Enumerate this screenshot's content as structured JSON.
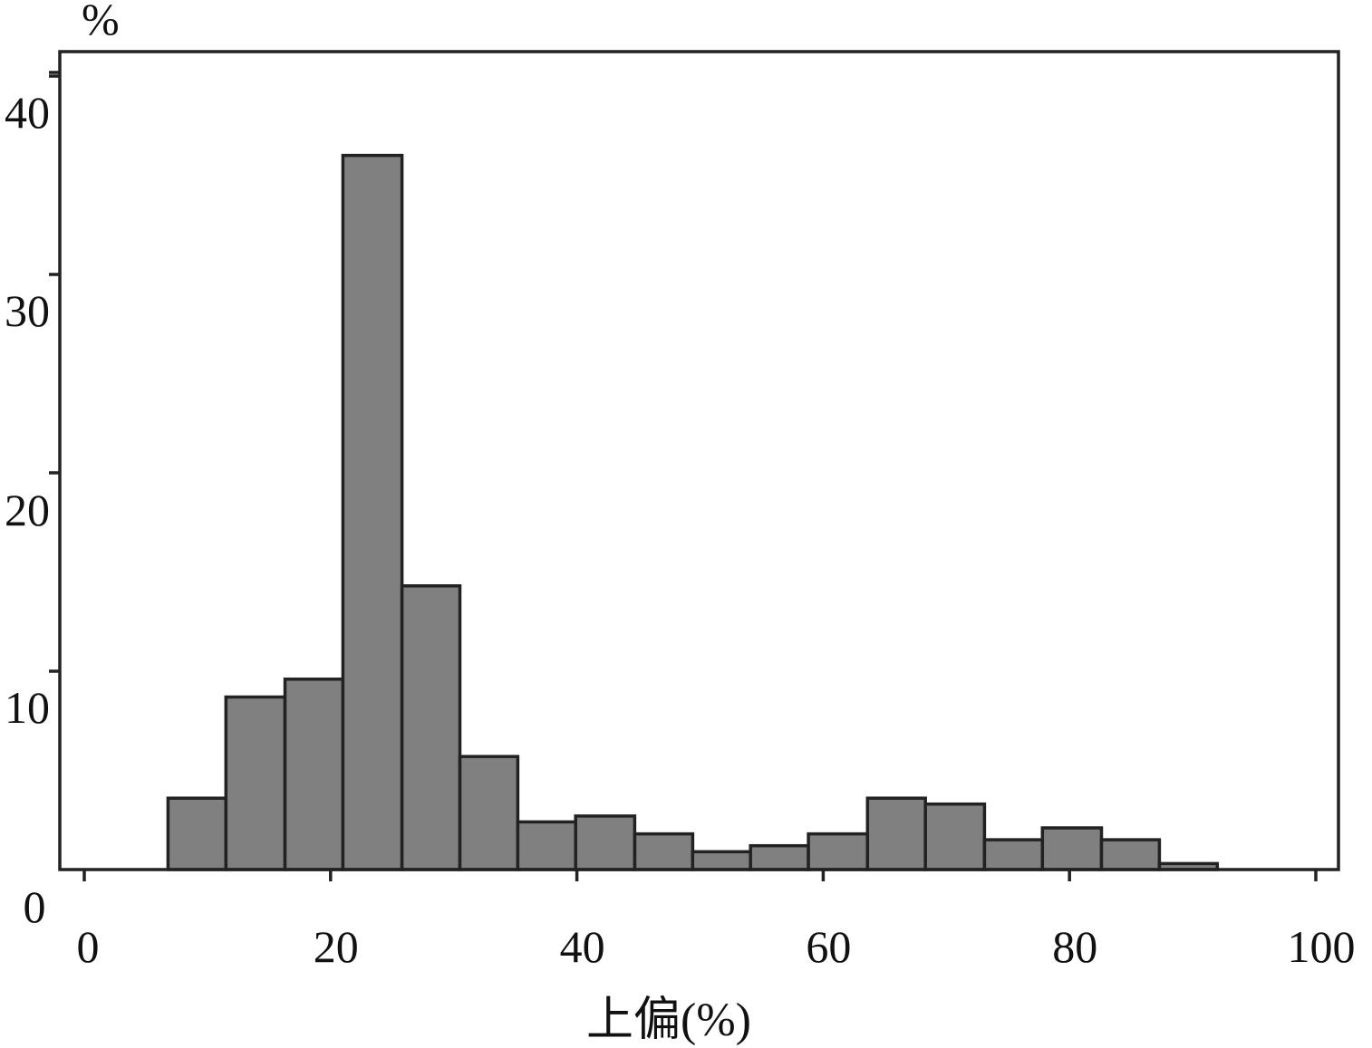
{
  "chart_data": {
    "type": "bar",
    "title": "",
    "xlabel": "上偏(%)",
    "ylabel": "%",
    "xlim": [
      0,
      100
    ],
    "ylim": [
      0,
      42
    ],
    "xticks": [
      0,
      20,
      40,
      60,
      80,
      100
    ],
    "yticks": [
      0,
      10,
      20,
      30,
      40
    ],
    "bins": [
      {
        "start": 6.8,
        "end": 11.5,
        "value": 3.6
      },
      {
        "start": 11.5,
        "end": 16.3,
        "value": 8.7
      },
      {
        "start": 16.3,
        "end": 21.0,
        "value": 9.6
      },
      {
        "start": 21.0,
        "end": 25.8,
        "value": 36.0
      },
      {
        "start": 25.8,
        "end": 30.5,
        "value": 14.3
      },
      {
        "start": 30.5,
        "end": 35.2,
        "value": 5.7
      },
      {
        "start": 35.2,
        "end": 39.9,
        "value": 2.4
      },
      {
        "start": 39.9,
        "end": 44.7,
        "value": 2.7
      },
      {
        "start": 44.7,
        "end": 49.4,
        "value": 1.8
      },
      {
        "start": 49.4,
        "end": 54.1,
        "value": 0.9
      },
      {
        "start": 54.1,
        "end": 58.8,
        "value": 1.2
      },
      {
        "start": 58.8,
        "end": 63.6,
        "value": 1.8
      },
      {
        "start": 63.6,
        "end": 68.3,
        "value": 3.6
      },
      {
        "start": 68.3,
        "end": 73.1,
        "value": 3.3
      },
      {
        "start": 73.1,
        "end": 77.8,
        "value": 1.5
      },
      {
        "start": 77.8,
        "end": 82.6,
        "value": 2.1
      },
      {
        "start": 82.6,
        "end": 87.3,
        "value": 1.5
      },
      {
        "start": 87.3,
        "end": 92.0,
        "value": 0.3
      }
    ],
    "bar_color": "#808080",
    "bar_edge_color": "#222222",
    "grid": false
  }
}
